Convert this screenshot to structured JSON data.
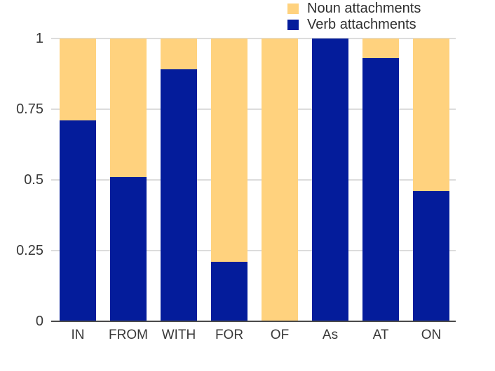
{
  "legend": {
    "items": [
      {
        "label": "Noun attachments",
        "color": "#FFD27E"
      },
      {
        "label": "Verb attachments",
        "color": "#041C9B"
      }
    ]
  },
  "chart_data": {
    "type": "bar",
    "stacked": true,
    "title": "",
    "xlabel": "",
    "ylabel": "",
    "categories": [
      "IN",
      "FROM",
      "WITH",
      "FOR",
      "OF",
      "As",
      "AT",
      "ON"
    ],
    "series": [
      {
        "name": "Verb attachments",
        "color": "#041C9B",
        "values": [
          0.71,
          0.51,
          0.89,
          0.21,
          0.0,
          1.0,
          0.93,
          0.46
        ]
      },
      {
        "name": "Noun attachments",
        "color": "#FFD27E",
        "values": [
          0.29,
          0.49,
          0.11,
          0.79,
          1.0,
          0.0,
          0.07,
          0.54
        ]
      }
    ],
    "ylim": [
      0,
      1
    ],
    "yticks": [
      0,
      0.25,
      0.5,
      0.75,
      1
    ],
    "ytick_labels": [
      "0",
      "0.25",
      "0.5",
      "0.75",
      "1"
    ],
    "grid": true,
    "legend_position": "top-center"
  },
  "colors": {
    "noun": "#FFD27E",
    "verb": "#041C9B",
    "gridline": "#DCDCDC",
    "axis_line": "#4A4A4A",
    "text": "#383838",
    "background": "#FFFFFF"
  }
}
